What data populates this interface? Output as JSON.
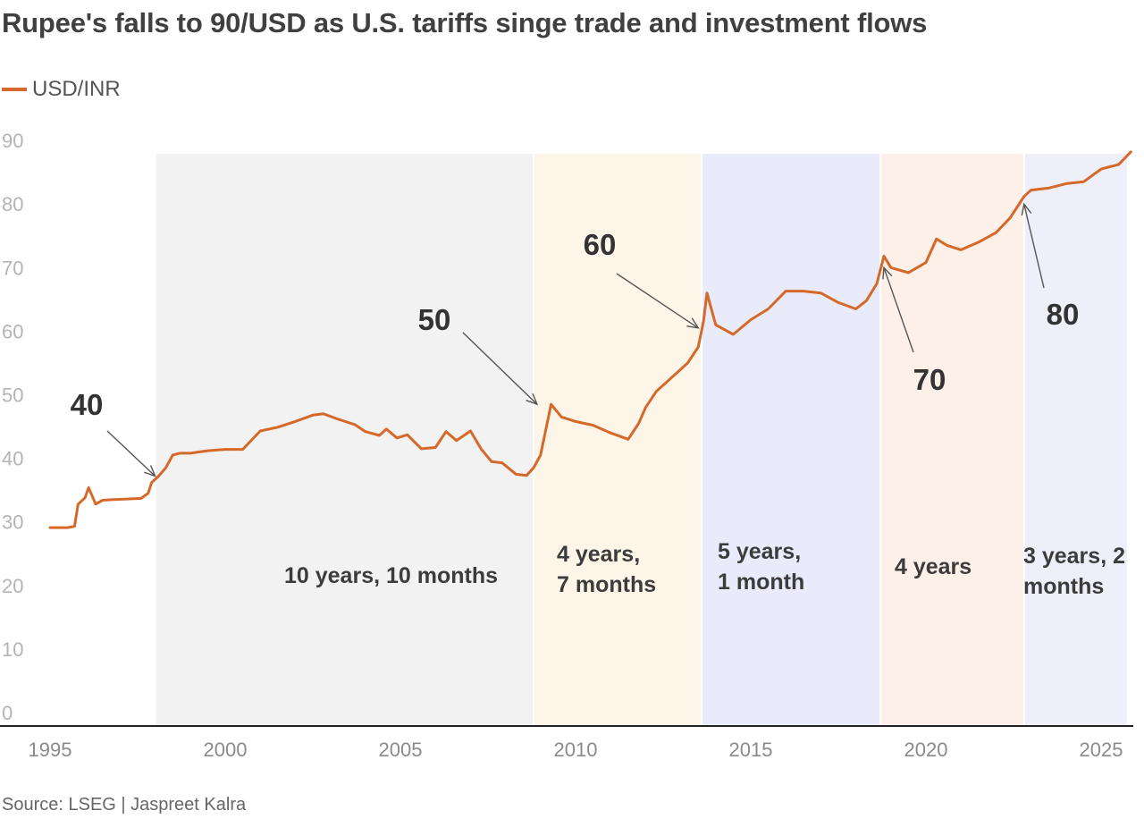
{
  "title": "Rupee's falls to 90/USD as U.S. tariffs singe trade and investment flows",
  "source": "Source: LSEG | Jaspreet Kalra",
  "chart_data": {
    "type": "line",
    "title": "Rupee's falls to 90/USD as U.S. tariffs singe trade and investment flows",
    "xlabel": "",
    "ylabel": "",
    "ylim": [
      0,
      90
    ],
    "xlim": [
      1995,
      2025.9
    ],
    "yticks": [
      0,
      10,
      20,
      30,
      40,
      50,
      60,
      70,
      80,
      90
    ],
    "xticks": [
      1995,
      2000,
      2005,
      2010,
      2015,
      2020,
      2025
    ],
    "grid": false,
    "legend": "top-left",
    "series": [
      {
        "name": "USD/INR",
        "color": "#d4692a",
        "x": [
          1995.0,
          1995.5,
          1995.7,
          1995.8,
          1996.0,
          1996.1,
          1996.3,
          1996.5,
          1996.8,
          1997.2,
          1997.6,
          1997.8,
          1997.9,
          1998.1,
          1998.3,
          1998.5,
          1998.7,
          1999.0,
          1999.5,
          2000.0,
          2000.5,
          2001.0,
          2001.5,
          2002.0,
          2002.5,
          2002.8,
          2003.2,
          2003.7,
          2004.0,
          2004.4,
          2004.6,
          2004.9,
          2005.2,
          2005.6,
          2006.0,
          2006.3,
          2006.6,
          2007.0,
          2007.3,
          2007.6,
          2007.9,
          2008.3,
          2008.6,
          2008.8,
          2009.0,
          2009.3,
          2009.6,
          2010.0,
          2010.5,
          2011.0,
          2011.5,
          2011.8,
          2012.0,
          2012.3,
          2012.6,
          2012.9,
          2013.2,
          2013.5,
          2013.65,
          2013.75,
          2014.0,
          2014.5,
          2015.0,
          2015.5,
          2016.0,
          2016.5,
          2017.0,
          2017.5,
          2018.0,
          2018.3,
          2018.6,
          2018.8,
          2019.0,
          2019.5,
          2020.0,
          2020.3,
          2020.6,
          2021.0,
          2021.5,
          2022.0,
          2022.4,
          2022.8,
          2023.0,
          2023.5,
          2024.0,
          2024.5,
          2025.0,
          2025.2,
          2025.5,
          2025.85
        ],
        "values": [
          29.1,
          29.1,
          29.3,
          32.8,
          33.8,
          35.4,
          32.8,
          33.4,
          33.5,
          33.6,
          33.7,
          34.5,
          36.2,
          37.2,
          38.5,
          40.5,
          40.8,
          40.8,
          41.2,
          41.4,
          41.4,
          44.3,
          44.9,
          45.8,
          46.8,
          47.0,
          46.2,
          45.3,
          44.2,
          43.6,
          44.6,
          43.2,
          43.7,
          41.5,
          41.7,
          44.2,
          42.8,
          44.3,
          41.5,
          39.5,
          39.3,
          37.5,
          37.3,
          38.5,
          40.5,
          48.5,
          46.5,
          45.8,
          45.2,
          44.0,
          43.0,
          45.5,
          48.0,
          50.5,
          52.0,
          53.5,
          55.0,
          57.5,
          61.5,
          66.0,
          61.0,
          59.5,
          61.8,
          63.5,
          66.3,
          66.3,
          66.0,
          64.5,
          63.5,
          64.8,
          67.5,
          71.8,
          70.0,
          69.2,
          70.8,
          74.5,
          73.5,
          72.8,
          74.0,
          75.5,
          77.8,
          81.2,
          82.2,
          82.5,
          83.2,
          83.5,
          85.5,
          85.8,
          86.2,
          88.2
        ]
      }
    ],
    "shaded_periods": [
      {
        "start": 1998.0,
        "end": 2008.8,
        "label": "10 years, 10 months",
        "color": "#f2f2f2"
      },
      {
        "start": 2008.8,
        "end": 2013.6,
        "label": "4 years, 7 months",
        "color": "#fdf6e8"
      },
      {
        "start": 2013.6,
        "end": 2018.7,
        "label": "5 years, 1 month",
        "color": "#eaebfa"
      },
      {
        "start": 2018.7,
        "end": 2022.8,
        "label": "4 years",
        "color": "#fcf0e8"
      },
      {
        "start": 2022.8,
        "end": 2025.9,
        "label": "3 years, 2 months",
        "color": "#eeeff9"
      }
    ],
    "annotations": [
      {
        "text": "40",
        "x": 1998.0,
        "y": 37.2
      },
      {
        "text": "50",
        "x": 2008.9,
        "y": 48.5
      },
      {
        "text": "60",
        "x": 2013.5,
        "y": 60.5
      },
      {
        "text": "70",
        "x": 2018.8,
        "y": 70.0
      },
      {
        "text": "80",
        "x": 2022.8,
        "y": 80.0
      }
    ]
  }
}
